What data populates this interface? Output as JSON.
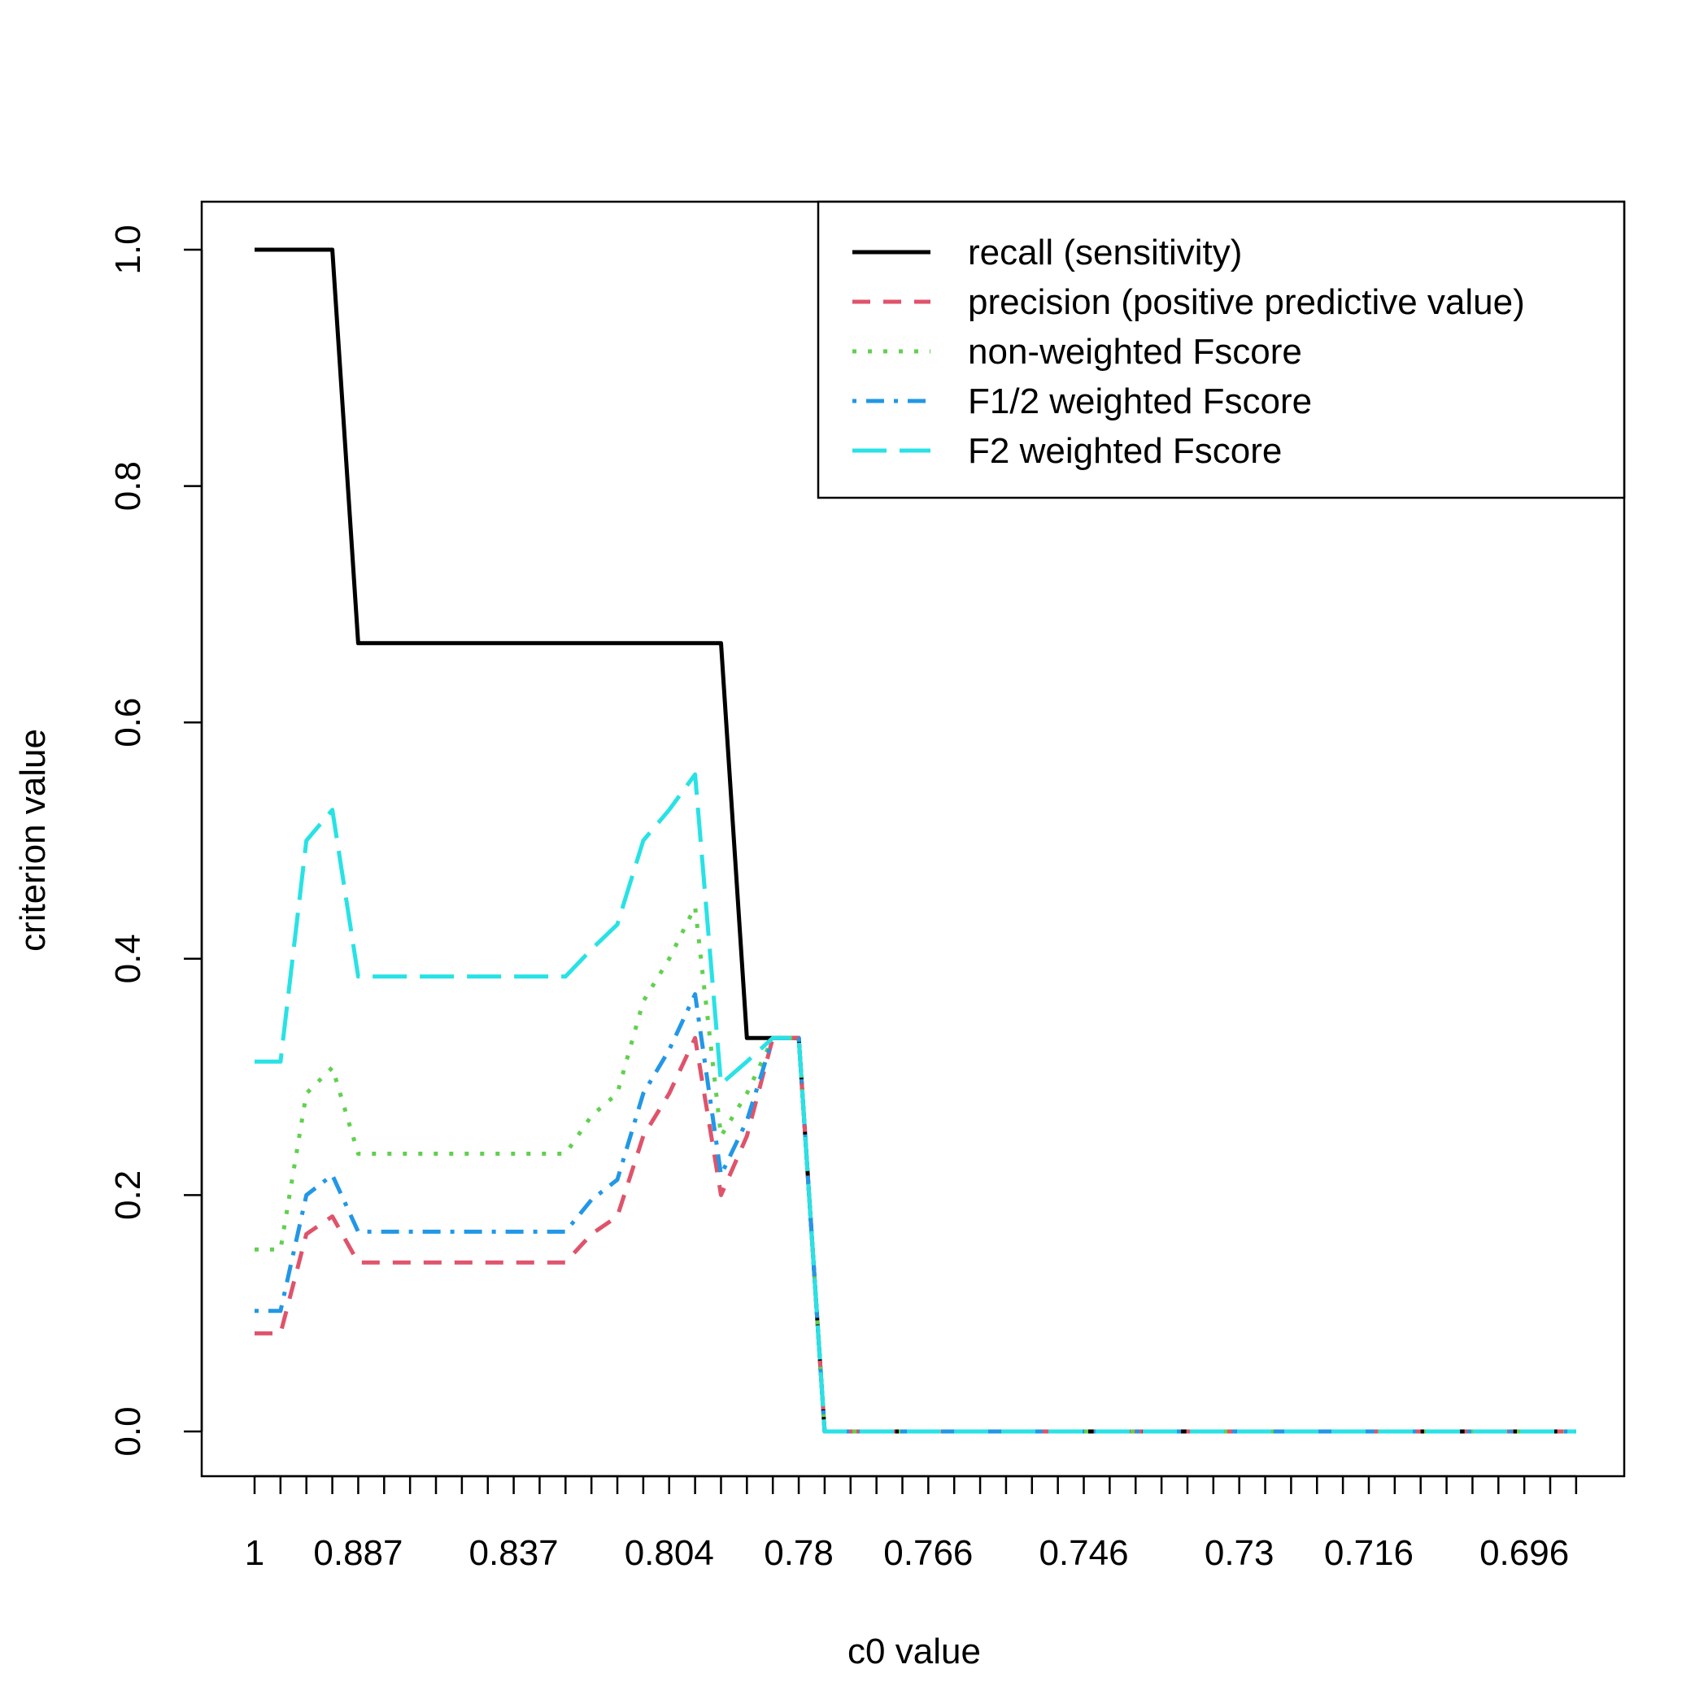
{
  "chart_data": {
    "type": "line",
    "title": "",
    "xlabel": "c0 value",
    "ylabel": "criterion value",
    "ylim": [
      0,
      1
    ],
    "yticks": [
      "0.0",
      "0.2",
      "0.4",
      "0.6",
      "0.8",
      "1.0"
    ],
    "x_tick_count": 52,
    "x_tick_labels": [
      {
        "index": 1,
        "label": "1"
      },
      {
        "index": 5,
        "label": "0.887"
      },
      {
        "index": 11,
        "label": "0.837"
      },
      {
        "index": 17,
        "label": "0.804"
      },
      {
        "index": 22,
        "label": "0.78"
      },
      {
        "index": 27,
        "label": "0.766"
      },
      {
        "index": 33,
        "label": "0.746"
      },
      {
        "index": 39,
        "label": "0.73"
      },
      {
        "index": 44,
        "label": "0.716"
      },
      {
        "index": 50,
        "label": "0.696"
      }
    ],
    "legend": {
      "position": "top-right",
      "box": true
    },
    "series": [
      {
        "name": "recall (sensitivity)",
        "color": "#000000",
        "dash": "solid",
        "values": [
          1.0,
          1.0,
          1.0,
          1.0,
          0.667,
          0.667,
          0.667,
          0.667,
          0.667,
          0.667,
          0.667,
          0.667,
          0.667,
          0.667,
          0.667,
          0.667,
          0.667,
          0.667,
          0.667,
          0.333,
          0.333,
          0.333,
          0,
          0,
          0,
          0,
          0,
          0,
          0,
          0,
          0,
          0,
          0,
          0,
          0,
          0,
          0,
          0,
          0,
          0,
          0,
          0,
          0,
          0,
          0,
          0,
          0,
          0,
          0,
          0,
          0,
          0
        ]
      },
      {
        "name": "precision (positive predictive value)",
        "color": "#DF536B",
        "dash": "dashed",
        "values": [
          0.083,
          0.083,
          0.167,
          0.182,
          0.143,
          0.143,
          0.143,
          0.143,
          0.143,
          0.143,
          0.143,
          0.143,
          0.143,
          0.167,
          0.182,
          0.25,
          0.286,
          0.333,
          0.2,
          0.25,
          0.333,
          0.333,
          0,
          0,
          0,
          0,
          0,
          0,
          0,
          0,
          0,
          0,
          0,
          0,
          0,
          0,
          0,
          0,
          0,
          0,
          0,
          0,
          0,
          0,
          0,
          0,
          0,
          0,
          0,
          0,
          0,
          0
        ]
      },
      {
        "name": "non-weighted Fscore",
        "color": "#61D04F",
        "dash": "dotted",
        "values": [
          0.154,
          0.154,
          0.286,
          0.308,
          0.235,
          0.235,
          0.235,
          0.235,
          0.235,
          0.235,
          0.235,
          0.235,
          0.235,
          0.267,
          0.286,
          0.364,
          0.4,
          0.444,
          0.25,
          0.286,
          0.333,
          0.333,
          0,
          0,
          0,
          0,
          0,
          0,
          0,
          0,
          0,
          0,
          0,
          0,
          0,
          0,
          0,
          0,
          0,
          0,
          0,
          0,
          0,
          0,
          0,
          0,
          0,
          0,
          0,
          0,
          0,
          0
        ]
      },
      {
        "name": "F1/2 weighted Fscore",
        "color": "#2297E6",
        "dash": "dotdash",
        "values": [
          0.102,
          0.102,
          0.2,
          0.217,
          0.169,
          0.169,
          0.169,
          0.169,
          0.169,
          0.169,
          0.169,
          0.169,
          0.169,
          0.196,
          0.213,
          0.286,
          0.323,
          0.37,
          0.217,
          0.263,
          0.333,
          0.333,
          0,
          0,
          0,
          0,
          0,
          0,
          0,
          0,
          0,
          0,
          0,
          0,
          0,
          0,
          0,
          0,
          0,
          0,
          0,
          0,
          0,
          0,
          0,
          0,
          0,
          0,
          0,
          0,
          0,
          0
        ]
      },
      {
        "name": "F2 weighted Fscore",
        "color": "#28E2E5",
        "dash": "longdash",
        "values": [
          0.313,
          0.313,
          0.5,
          0.526,
          0.385,
          0.385,
          0.385,
          0.385,
          0.385,
          0.385,
          0.385,
          0.385,
          0.385,
          0.408,
          0.429,
          0.5,
          0.526,
          0.556,
          0.294,
          0.313,
          0.333,
          0.333,
          0,
          0,
          0,
          0,
          0,
          0,
          0,
          0,
          0,
          0,
          0,
          0,
          0,
          0,
          0,
          0,
          0,
          0,
          0,
          0,
          0,
          0,
          0,
          0,
          0,
          0,
          0,
          0,
          0,
          0
        ]
      }
    ]
  }
}
